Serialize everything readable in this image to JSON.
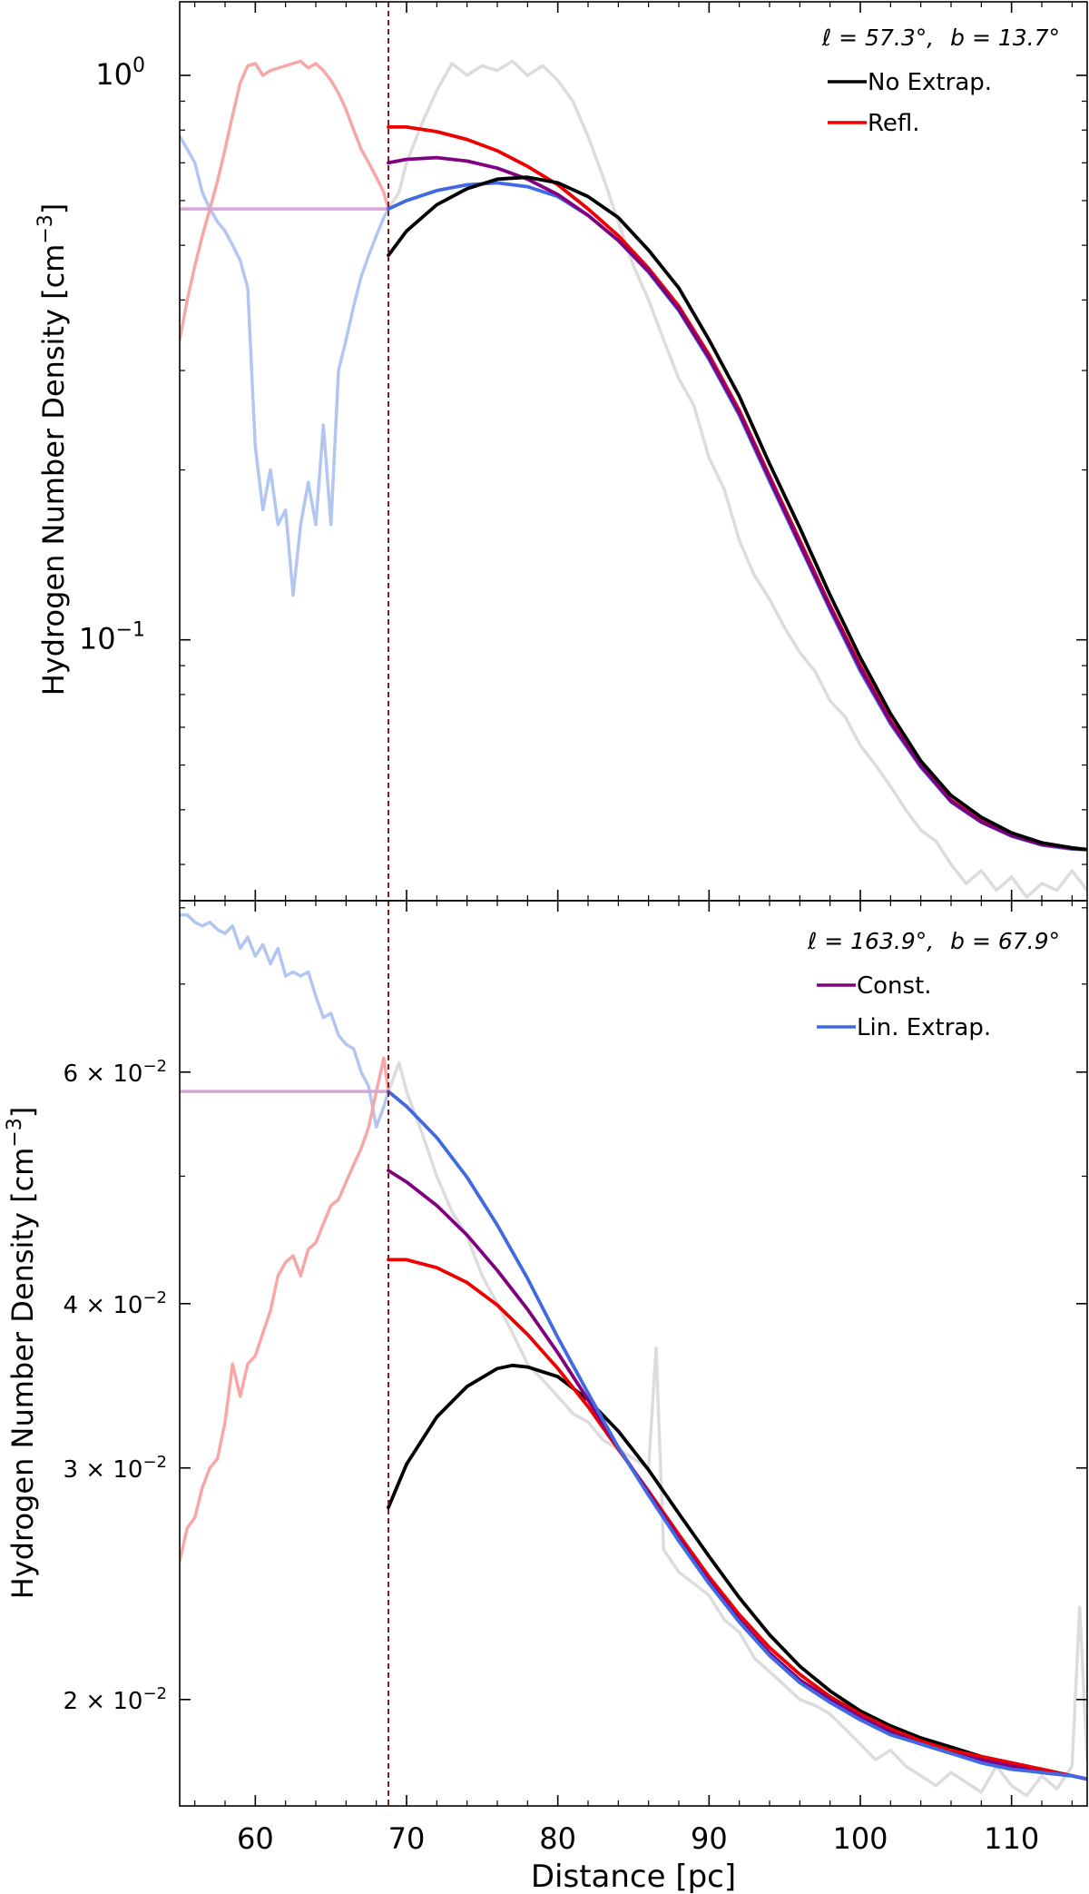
{
  "figure": {
    "xlabel": "Distance [pc]",
    "xlim": [
      55,
      115
    ],
    "xticks": [
      60,
      70,
      80,
      90,
      100,
      110
    ],
    "xtick_labels": [
      "60",
      "70",
      "80",
      "90",
      "100",
      "110"
    ],
    "cutoff_distance": 68.8,
    "colors": {
      "no_extrap": "#000000",
      "refl": "#ee0000",
      "const": "#800080",
      "lin_extrap": "#4169e1",
      "data_gray": "#dcdcdc",
      "mirror_red": "#f7a7a7",
      "mirror_blue": "#b3c6f2",
      "const_line": "#d8a5d8",
      "cutoff": "#8b1a1a"
    }
  },
  "chart_data": [
    {
      "type": "line",
      "yscale": "log",
      "ylabel": "Hydrogen Number Density [cm",
      "ylabel_sup": "−3",
      "ylabel_end": "]",
      "ylim": [
        0.0345,
        1.35
      ],
      "yticks_major": [
        0.1,
        1.0
      ],
      "ytick_labels": [
        {
          "mantissa": "10",
          "exp": "−1"
        },
        {
          "mantissa": "10",
          "exp": "0"
        }
      ],
      "annotation": {
        "l_part": "ℓ = 57.3°,",
        "b_part": "b = 13.7°"
      },
      "legend": [
        {
          "label": "No Extrap.",
          "color": "#000000"
        },
        {
          "label": "Refl.",
          "color": "#ee0000"
        }
      ],
      "const_value": 0.58,
      "series": [
        {
          "name": "No Extrap.",
          "color": "#000000",
          "x": [
            68.8,
            70,
            72,
            74,
            76,
            78,
            80,
            82,
            84,
            86,
            88,
            90,
            92,
            94,
            96,
            98,
            100,
            102,
            104,
            106,
            108,
            110,
            112,
            114,
            115
          ],
          "y": [
            0.48,
            0.53,
            0.59,
            0.63,
            0.655,
            0.66,
            0.645,
            0.61,
            0.56,
            0.49,
            0.42,
            0.34,
            0.27,
            0.205,
            0.158,
            0.12,
            0.093,
            0.074,
            0.061,
            0.053,
            0.0485,
            0.0455,
            0.0437,
            0.0428,
            0.0425
          ]
        },
        {
          "name": "Refl.",
          "color": "#ee0000",
          "x": [
            68.8,
            70,
            72,
            74,
            76,
            78,
            80,
            82,
            84,
            86,
            88,
            90,
            92,
            94,
            96,
            98,
            100,
            102,
            104,
            106,
            108,
            110,
            112,
            114,
            115
          ],
          "y": [
            0.81,
            0.81,
            0.795,
            0.77,
            0.735,
            0.69,
            0.64,
            0.58,
            0.52,
            0.455,
            0.39,
            0.32,
            0.255,
            0.195,
            0.15,
            0.115,
            0.09,
            0.072,
            0.06,
            0.052,
            0.0478,
            0.0451,
            0.0435,
            0.0427,
            0.0425
          ]
        },
        {
          "name": "Const.",
          "color": "#800080",
          "x": [
            68.8,
            70,
            72,
            74,
            76,
            78,
            80,
            82,
            84,
            86,
            88,
            90,
            92,
            94,
            96,
            98,
            100,
            102,
            104,
            106,
            108,
            110,
            112,
            114,
            115
          ],
          "y": [
            0.7,
            0.71,
            0.715,
            0.705,
            0.685,
            0.655,
            0.615,
            0.565,
            0.51,
            0.45,
            0.385,
            0.316,
            0.252,
            0.193,
            0.148,
            0.114,
            0.089,
            0.0715,
            0.0598,
            0.0518,
            0.0476,
            0.045,
            0.0434,
            0.0427,
            0.0425
          ]
        },
        {
          "name": "Lin. Extrap.",
          "color": "#4169e1",
          "x": [
            68.8,
            70,
            72,
            74,
            76,
            78,
            80,
            82,
            84,
            86,
            88,
            90,
            92,
            94,
            96,
            98,
            100,
            102,
            104,
            106,
            108,
            110,
            112,
            114,
            115
          ],
          "y": [
            0.58,
            0.6,
            0.625,
            0.64,
            0.645,
            0.635,
            0.61,
            0.565,
            0.51,
            0.448,
            0.383,
            0.314,
            0.25,
            0.191,
            0.147,
            0.113,
            0.088,
            0.071,
            0.0595,
            0.0516,
            0.0475,
            0.0449,
            0.0433,
            0.0426,
            0.0425
          ]
        }
      ],
      "background": {
        "mirror_red": {
          "x": [
            55,
            55.5,
            56,
            56.5,
            57,
            57.5,
            58,
            58.5,
            59,
            59.5,
            60,
            60.5,
            61,
            61.5,
            62,
            62.5,
            63,
            63.5,
            64,
            64.5,
            65,
            65.5,
            66,
            66.5,
            67,
            67.5,
            68,
            68.5,
            68.8
          ],
          "y": [
            0.34,
            0.4,
            0.46,
            0.52,
            0.58,
            0.65,
            0.74,
            0.85,
            0.97,
            1.04,
            1.05,
            1.0,
            1.02,
            1.03,
            1.04,
            1.05,
            1.06,
            1.03,
            1.05,
            1.02,
            0.98,
            0.93,
            0.87,
            0.8,
            0.74,
            0.7,
            0.66,
            0.62,
            0.58
          ]
        },
        "mirror_blue": {
          "x": [
            55,
            55.5,
            56,
            56.5,
            57,
            57.5,
            58,
            58.5,
            59,
            59.5,
            60,
            60.5,
            61,
            61.5,
            62,
            62.5,
            63,
            63.5,
            64,
            64.5,
            65,
            65.5,
            66,
            66.5,
            67,
            67.5,
            68,
            68.5,
            68.8
          ],
          "y": [
            0.78,
            0.74,
            0.7,
            0.62,
            0.58,
            0.55,
            0.53,
            0.5,
            0.47,
            0.42,
            0.22,
            0.17,
            0.2,
            0.16,
            0.17,
            0.12,
            0.16,
            0.19,
            0.16,
            0.24,
            0.16,
            0.3,
            0.34,
            0.39,
            0.44,
            0.48,
            0.52,
            0.56,
            0.58
          ]
        },
        "data_gray": {
          "x": [
            68.8,
            69.5,
            70,
            71,
            72,
            73,
            74,
            75,
            76,
            77,
            78,
            79,
            80,
            81,
            82,
            83,
            84,
            85,
            86,
            87,
            88,
            89,
            90,
            91,
            92,
            93,
            94,
            95,
            96,
            97,
            98,
            99,
            100,
            101,
            102,
            103,
            104,
            105,
            106,
            107,
            108,
            109,
            110,
            111,
            112,
            113,
            114,
            115
          ],
          "y": [
            0.58,
            0.62,
            0.7,
            0.82,
            0.94,
            1.05,
            1.0,
            1.04,
            1.02,
            1.06,
            1.0,
            1.04,
            0.98,
            0.9,
            0.78,
            0.66,
            0.55,
            0.46,
            0.4,
            0.34,
            0.29,
            0.26,
            0.21,
            0.185,
            0.15,
            0.13,
            0.118,
            0.105,
            0.095,
            0.088,
            0.078,
            0.073,
            0.065,
            0.06,
            0.055,
            0.05,
            0.046,
            0.044,
            0.04,
            0.037,
            0.039,
            0.036,
            0.038,
            0.035,
            0.037,
            0.036,
            0.039,
            0.036
          ]
        }
      }
    },
    {
      "type": "line",
      "yscale": "log",
      "ylabel": "Hydrogen Number Density [cm",
      "ylabel_sup": "−3",
      "ylabel_end": "]",
      "ylim": [
        0.0166,
        0.081
      ],
      "yticks_major": [
        0.02,
        0.03,
        0.04,
        0.06
      ],
      "ytick_labels": [
        {
          "mantissa": "2 × 10",
          "exp": "−2"
        },
        {
          "mantissa": "3 × 10",
          "exp": "−2"
        },
        {
          "mantissa": "4 × 10",
          "exp": "−2"
        },
        {
          "mantissa": "6 × 10",
          "exp": "−2"
        }
      ],
      "annotation": {
        "l_part": "ℓ = 163.9°,",
        "b_part": "b = 67.9°"
      },
      "legend": [
        {
          "label": "Const.",
          "color": "#800080"
        },
        {
          "label": "Lin. Extrap.",
          "color": "#4169e1"
        }
      ],
      "const_value": 0.058,
      "series": [
        {
          "name": "No Extrap.",
          "color": "#000000",
          "x": [
            68.8,
            70,
            72,
            74,
            76,
            77,
            78,
            80,
            82,
            84,
            86,
            88,
            90,
            92,
            94,
            96,
            98,
            100,
            102,
            104,
            106,
            108,
            110,
            112,
            114,
            115
          ],
          "y": [
            0.028,
            0.0302,
            0.0328,
            0.0346,
            0.0357,
            0.0359,
            0.0358,
            0.0352,
            0.0338,
            0.032,
            0.0299,
            0.0277,
            0.0257,
            0.0239,
            0.0224,
            0.0212,
            0.0203,
            0.0196,
            0.0191,
            0.0187,
            0.0184,
            0.0181,
            0.0179,
            0.0177,
            0.0175,
            0.0174
          ]
        },
        {
          "name": "Refl.",
          "color": "#ee0000",
          "x": [
            68.8,
            70,
            72,
            74,
            76,
            78,
            80,
            82,
            84,
            86,
            88,
            90,
            92,
            94,
            96,
            98,
            100,
            102,
            104,
            106,
            108,
            110,
            112,
            114,
            115
          ],
          "y": [
            0.0432,
            0.0432,
            0.0426,
            0.0415,
            0.0399,
            0.0379,
            0.0357,
            0.0334,
            0.031,
            0.0288,
            0.0267,
            0.0248,
            0.0232,
            0.0219,
            0.0209,
            0.0201,
            0.0195,
            0.019,
            0.0186,
            0.0183,
            0.0181,
            0.0179,
            0.0177,
            0.0175,
            0.0174
          ]
        },
        {
          "name": "Const.",
          "color": "#800080",
          "x": [
            68.8,
            70,
            72,
            74,
            76,
            78,
            80,
            82,
            84,
            86,
            88,
            90,
            92,
            94,
            96,
            98,
            100,
            102,
            104,
            106,
            108,
            110,
            112,
            114,
            115
          ],
          "y": [
            0.0505,
            0.0495,
            0.0475,
            0.0451,
            0.0424,
            0.0396,
            0.0367,
            0.0338,
            0.0311,
            0.0287,
            0.0265,
            0.0246,
            0.023,
            0.0217,
            0.0207,
            0.02,
            0.0194,
            0.0189,
            0.0185,
            0.0182,
            0.018,
            0.0178,
            0.0176,
            0.0175,
            0.0174
          ]
        },
        {
          "name": "Lin. Extrap.",
          "color": "#4169e1",
          "x": [
            68.8,
            70,
            72,
            74,
            76,
            78,
            80,
            82,
            84,
            86,
            88,
            90,
            92,
            94,
            96,
            98,
            100,
            102,
            104,
            106,
            108,
            110,
            112,
            114,
            115
          ],
          "y": [
            0.058,
            0.0565,
            0.0535,
            0.0499,
            0.0459,
            0.0418,
            0.0377,
            0.0342,
            0.0311,
            0.0286,
            0.0264,
            0.0245,
            0.0229,
            0.0216,
            0.0206,
            0.0199,
            0.0193,
            0.0188,
            0.0185,
            0.0182,
            0.0179,
            0.0177,
            0.0176,
            0.0175,
            0.0174
          ]
        }
      ],
      "background": {
        "mirror_red": {
          "x": [
            55,
            55.5,
            56,
            56.5,
            57,
            57.5,
            58,
            58.5,
            59,
            59.5,
            60,
            60.5,
            61,
            61.5,
            62,
            62.5,
            63,
            63.5,
            64,
            64.5,
            65,
            65.5,
            66,
            66.5,
            67,
            67.5,
            68,
            68.5,
            68.8
          ],
          "y": [
            0.0255,
            0.027,
            0.0275,
            0.029,
            0.03,
            0.0305,
            0.0325,
            0.036,
            0.034,
            0.036,
            0.0365,
            0.038,
            0.0395,
            0.042,
            0.043,
            0.0435,
            0.042,
            0.044,
            0.0445,
            0.046,
            0.0475,
            0.048,
            0.0495,
            0.051,
            0.0525,
            0.0545,
            0.058,
            0.0615,
            0.058
          ]
        },
        "mirror_blue": {
          "x": [
            55,
            55.5,
            56,
            56.5,
            57,
            57.5,
            58,
            58.5,
            59,
            59.5,
            60,
            60.5,
            61,
            61.5,
            62,
            62.5,
            63,
            63.5,
            64,
            64.5,
            65,
            65.5,
            66,
            66.5,
            67,
            67.5,
            68,
            68.5,
            68.8
          ],
          "y": [
            0.079,
            0.079,
            0.078,
            0.0775,
            0.078,
            0.077,
            0.0765,
            0.0775,
            0.0745,
            0.076,
            0.0735,
            0.075,
            0.0725,
            0.0745,
            0.071,
            0.0715,
            0.071,
            0.0715,
            0.0685,
            0.066,
            0.0665,
            0.064,
            0.063,
            0.0625,
            0.06,
            0.0585,
            0.0545,
            0.0565,
            0.058
          ]
        },
        "data_gray": {
          "x": [
            68.8,
            69.5,
            70,
            71,
            72,
            73,
            74,
            75,
            76,
            77,
            78,
            79,
            80,
            81,
            82,
            83,
            84,
            85,
            86,
            86.5,
            87,
            88,
            89,
            90,
            91,
            92,
            93,
            94,
            95,
            96,
            97,
            98,
            99,
            100,
            101,
            102,
            103,
            104,
            105,
            106,
            107,
            108,
            109,
            110,
            111,
            112,
            113,
            114,
            114.5,
            115
          ],
          "y": [
            0.058,
            0.061,
            0.058,
            0.054,
            0.05,
            0.047,
            0.045,
            0.042,
            0.04,
            0.038,
            0.036,
            0.035,
            0.034,
            0.033,
            0.0325,
            0.0315,
            0.031,
            0.0305,
            0.03,
            0.037,
            0.026,
            0.025,
            0.0245,
            0.024,
            0.023,
            0.0225,
            0.0215,
            0.021,
            0.0205,
            0.02,
            0.0198,
            0.0195,
            0.019,
            0.0185,
            0.018,
            0.0183,
            0.0178,
            0.0175,
            0.0172,
            0.0176,
            0.0173,
            0.017,
            0.0178,
            0.0172,
            0.0169,
            0.0175,
            0.0171,
            0.0178,
            0.0235,
            0.018
          ]
        }
      }
    }
  ]
}
